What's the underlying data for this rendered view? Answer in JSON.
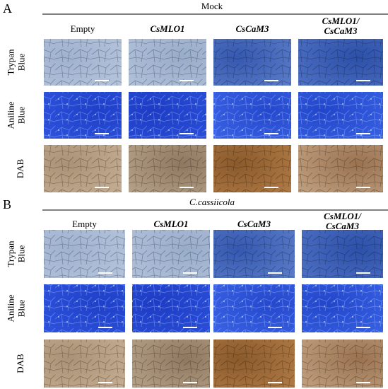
{
  "panels": [
    {
      "label": "A",
      "condition": "Mock",
      "columns": [
        [
          "Empty"
        ],
        [
          "CsMLO1"
        ],
        [
          "CsCaM3"
        ],
        [
          "CsMLO1/",
          "CsCaM3"
        ]
      ],
      "rows": [
        [
          "Trypan",
          "Blue"
        ],
        [
          "Aniline",
          "Blue"
        ],
        [
          "DAB"
        ]
      ]
    },
    {
      "label": "B",
      "condition": "C.cassiicola",
      "columns": [
        [
          "Empty"
        ],
        [
          "CsMLO1"
        ],
        [
          "CsCaM3"
        ],
        [
          "CsMLO1/",
          "CsCaM3"
        ]
      ],
      "rows": [
        [
          "Trypan",
          "Blue"
        ],
        [
          "Aniline",
          "Blue"
        ],
        [
          "DAB"
        ]
      ]
    }
  ]
}
